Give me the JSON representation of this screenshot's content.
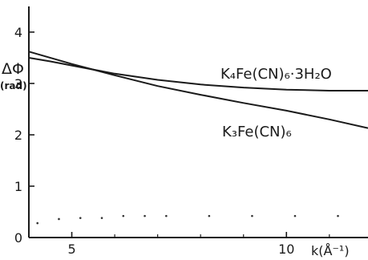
{
  "chart_data": {
    "type": "line",
    "title": "",
    "ylabel": "ΔΦ",
    "ylabel_unit": "(rad)",
    "xlabel": "k(Å⁻¹)",
    "xlim": [
      4.0,
      11.9
    ],
    "ylim": [
      0,
      4.5
    ],
    "grid": false,
    "x_ticks": [
      5,
      10
    ],
    "y_ticks": [
      0,
      1,
      2,
      3,
      4
    ],
    "series": [
      {
        "name": "K₄Fe(CN)₆·3H₂O",
        "x": [
          4.0,
          4.5,
          5.0,
          6.0,
          7.0,
          8.0,
          9.0,
          10.0,
          11.0,
          11.9
        ],
        "y": [
          3.5,
          3.43,
          3.35,
          3.19,
          3.07,
          2.98,
          2.92,
          2.88,
          2.86,
          2.86
        ]
      },
      {
        "name": "K₃Fe(CN)₆",
        "x": [
          4.0,
          5.0,
          6.0,
          7.0,
          8.0,
          9.0,
          10.0,
          11.0,
          11.9
        ],
        "y": [
          3.62,
          3.38,
          3.16,
          2.95,
          2.78,
          2.62,
          2.47,
          2.3,
          2.13
        ]
      }
    ],
    "residual_points": {
      "x": [
        4.2,
        4.7,
        5.2,
        5.7,
        6.2,
        6.7,
        7.2,
        8.2,
        9.2,
        10.2,
        11.2
      ],
      "y": [
        0.28,
        0.36,
        0.38,
        0.38,
        0.42,
        0.42,
        0.42,
        0.42,
        0.42,
        0.42,
        0.42
      ]
    }
  }
}
